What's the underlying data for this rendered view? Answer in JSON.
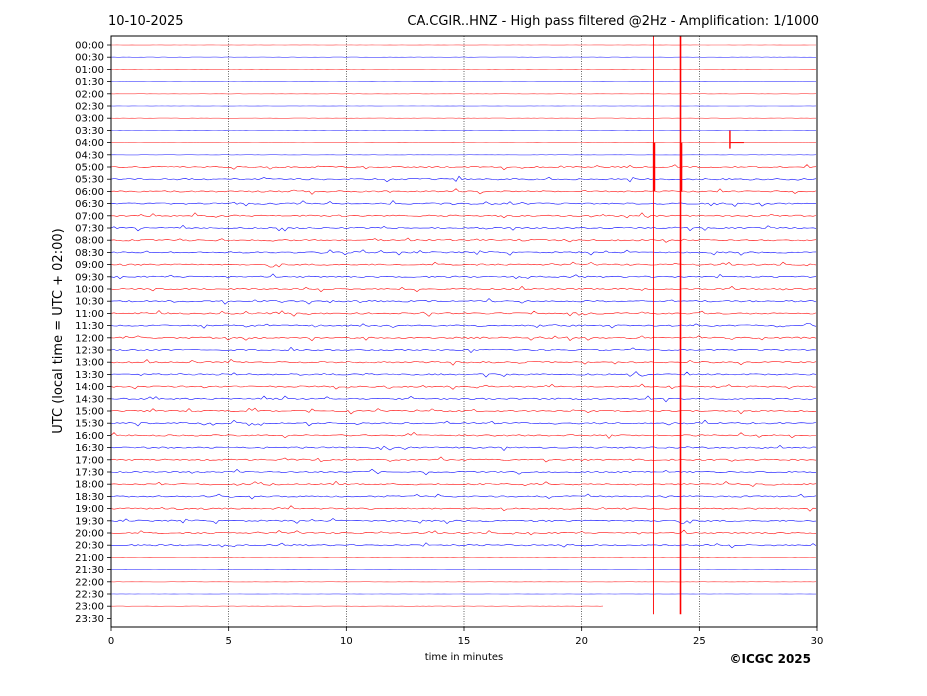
{
  "header": {
    "date": "10-10-2025",
    "title": "CA.CGIR..HNZ - High pass filtered @2Hz - Amplification: 1/1000"
  },
  "footer": {
    "copyright": "©ICGC 2025"
  },
  "chart_data": {
    "type": "line",
    "title": "CA.CGIR..HNZ - High pass filtered @2Hz - Amplification: 1/1000",
    "xlabel": "time in minutes",
    "ylabel": "UTC (local time = UTC + 02:00)",
    "xlim": [
      0,
      30
    ],
    "xticks": [
      0,
      5,
      10,
      15,
      20,
      25,
      30
    ],
    "grid_x": true,
    "rows": [
      "00:00",
      "00:30",
      "01:00",
      "01:30",
      "02:00",
      "02:30",
      "03:00",
      "03:30",
      "04:00",
      "04:30",
      "05:00",
      "05:30",
      "06:00",
      "06:30",
      "07:00",
      "07:30",
      "08:00",
      "08:30",
      "09:00",
      "09:30",
      "10:00",
      "10:30",
      "11:00",
      "11:30",
      "12:00",
      "12:30",
      "13:00",
      "13:30",
      "14:00",
      "14:30",
      "15:00",
      "15:30",
      "16:00",
      "16:30",
      "17:00",
      "17:30",
      "18:00",
      "18:30",
      "19:00",
      "19:30",
      "20:00",
      "20:30",
      "21:00",
      "21:30",
      "22:00",
      "22:30",
      "23:00",
      "23:30"
    ],
    "row_colors": [
      "#ff0000",
      "#0000ff"
    ],
    "last_trace_row": "23:00",
    "last_trace_end_minute": 21.0,
    "events": [
      {
        "minute": 23.05,
        "from_row": "00:00",
        "to_row": "23:00"
      },
      {
        "minute": 24.2,
        "from_row": "00:00",
        "to_row": "23:00"
      },
      {
        "minute": 26.3,
        "row": "04:00"
      }
    ]
  }
}
